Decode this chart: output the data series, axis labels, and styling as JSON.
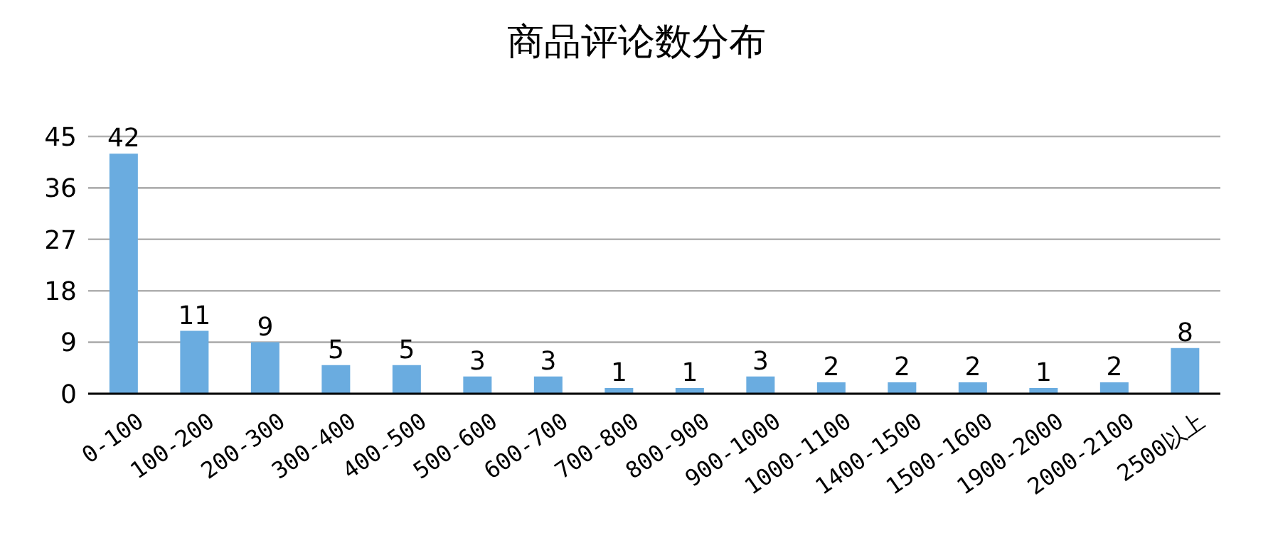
{
  "chart_data": {
    "type": "bar",
    "title": "商品评论数分布",
    "categories": [
      "0-100",
      "100-200",
      "200-300",
      "300-400",
      "400-500",
      "500-600",
      "600-700",
      "700-800",
      "800-900",
      "900-1000",
      "1000-1100",
      "1400-1500",
      "1500-1600",
      "1900-2000",
      "2000-2100",
      "2500以上"
    ],
    "values": [
      42,
      11,
      9,
      5,
      5,
      3,
      3,
      1,
      1,
      3,
      2,
      2,
      2,
      1,
      2,
      8
    ],
    "color": "#6aace0",
    "ylim": [
      0,
      45
    ],
    "yticks": [
      0,
      9,
      18,
      27,
      36,
      45
    ],
    "grid": "y",
    "data_labels": true
  }
}
